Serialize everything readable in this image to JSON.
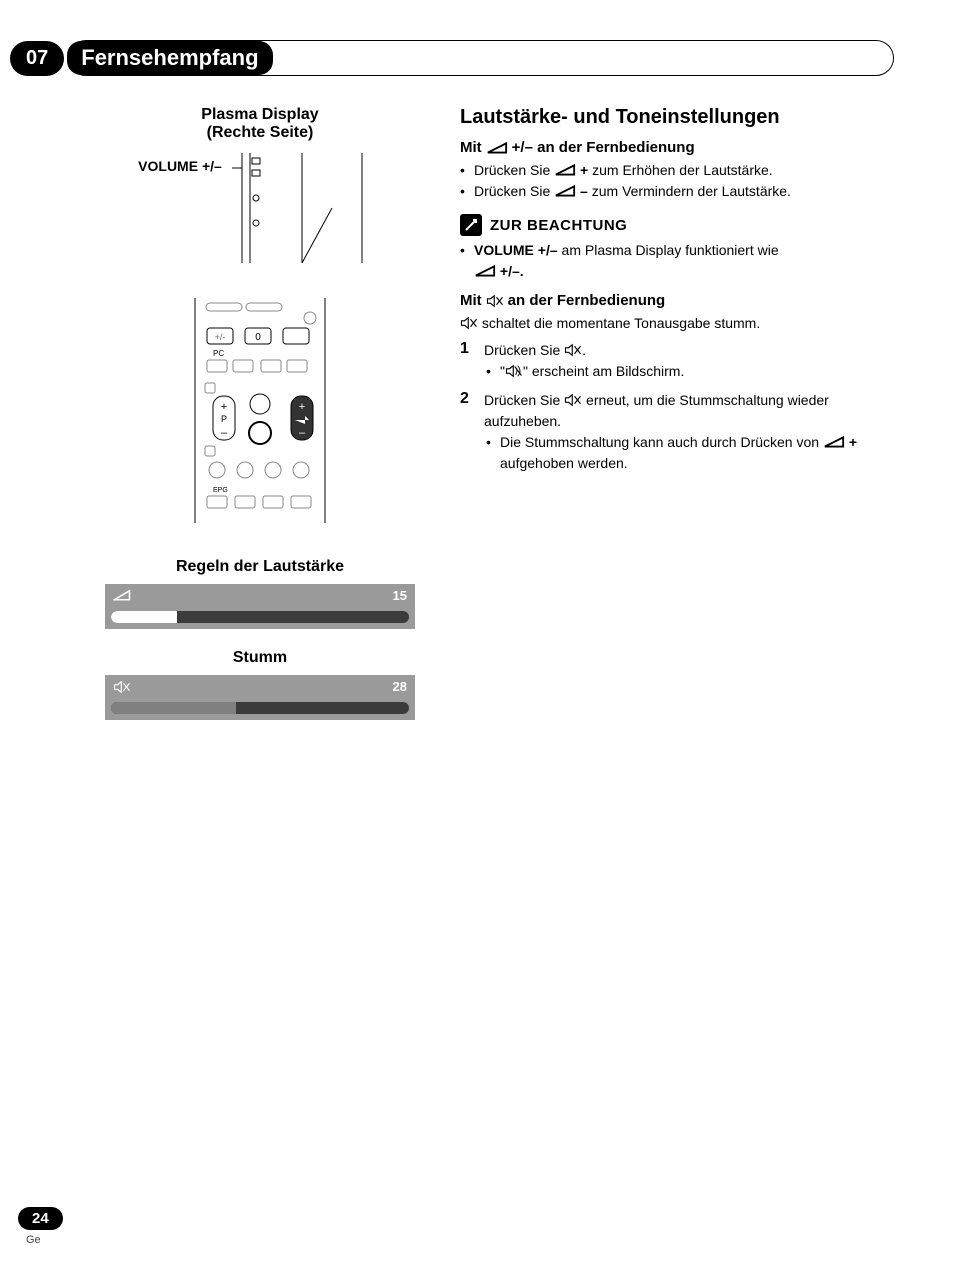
{
  "header": {
    "chapter_number": "07",
    "chapter_title": "Fernsehempfang"
  },
  "left": {
    "panel_caption_line1": "Plasma Display",
    "panel_caption_line2": "(Rechte Seite)",
    "volume_label": "VOLUME +/–",
    "remote_labels": {
      "zero": "0",
      "pc": "PC",
      "p": "P",
      "epg": "EPG"
    },
    "osd_volume": {
      "title": "Regeln der Lautstärke",
      "value": "15",
      "fill_percent": 22,
      "track_color": "#3b3b3b",
      "fill_color": "#ffffff",
      "bg_color": "#9a9a9a"
    },
    "osd_mute": {
      "title": "Stumm",
      "value": "28",
      "fill_percent": 42,
      "track_color": "#3b3b3b",
      "fill_color": "#808080",
      "bg_color": "#9a9a9a"
    }
  },
  "right": {
    "section_title": "Lautstärke- und Toneinstellungen",
    "sub1_prefix": "Mit ",
    "sub1_suffix": " +/– an der Fernbedienung",
    "bullets1": [
      {
        "pre": "Drücken Sie ",
        "bold": "+",
        "post": " zum Erhöhen der Lautstärke."
      },
      {
        "pre": "Drücken Sie ",
        "bold": "–",
        "post": " zum Vermindern der Lautstärke."
      }
    ],
    "note_label": "ZUR BEACHTUNG",
    "note_item_pre": "VOLUME +/–",
    "note_item_mid": " am Plasma Display funktioniert wie",
    "note_item_suffix": " +/–.",
    "sub2_prefix": "Mit ",
    "sub2_suffix": " an der Fernbedienung",
    "mute_desc": " schaltet die momentane Tonausgabe stumm.",
    "steps": [
      {
        "num": "1",
        "text_pre": "Drücken Sie ",
        "text_post": ".",
        "sub": [
          {
            "pre": "\"",
            "icon": "mute-wave",
            "post": "\" erscheint am Bildschirm."
          }
        ]
      },
      {
        "num": "2",
        "text_pre": "Drücken Sie ",
        "text_post": " erneut, um die Stummschaltung wieder aufzuheben.",
        "sub": [
          {
            "pre": "Die Stummschaltung kann auch durch Drücken von ",
            "icon": "vol",
            "bold": "+",
            "post": " aufgehoben werden."
          }
        ]
      }
    ]
  },
  "footer": {
    "page_number": "24",
    "lang": "Ge"
  },
  "colors": {
    "black": "#000000",
    "white": "#ffffff",
    "grey_osd": "#9a9a9a",
    "grey_track": "#3b3b3b",
    "grey_fill_mute": "#808080"
  }
}
